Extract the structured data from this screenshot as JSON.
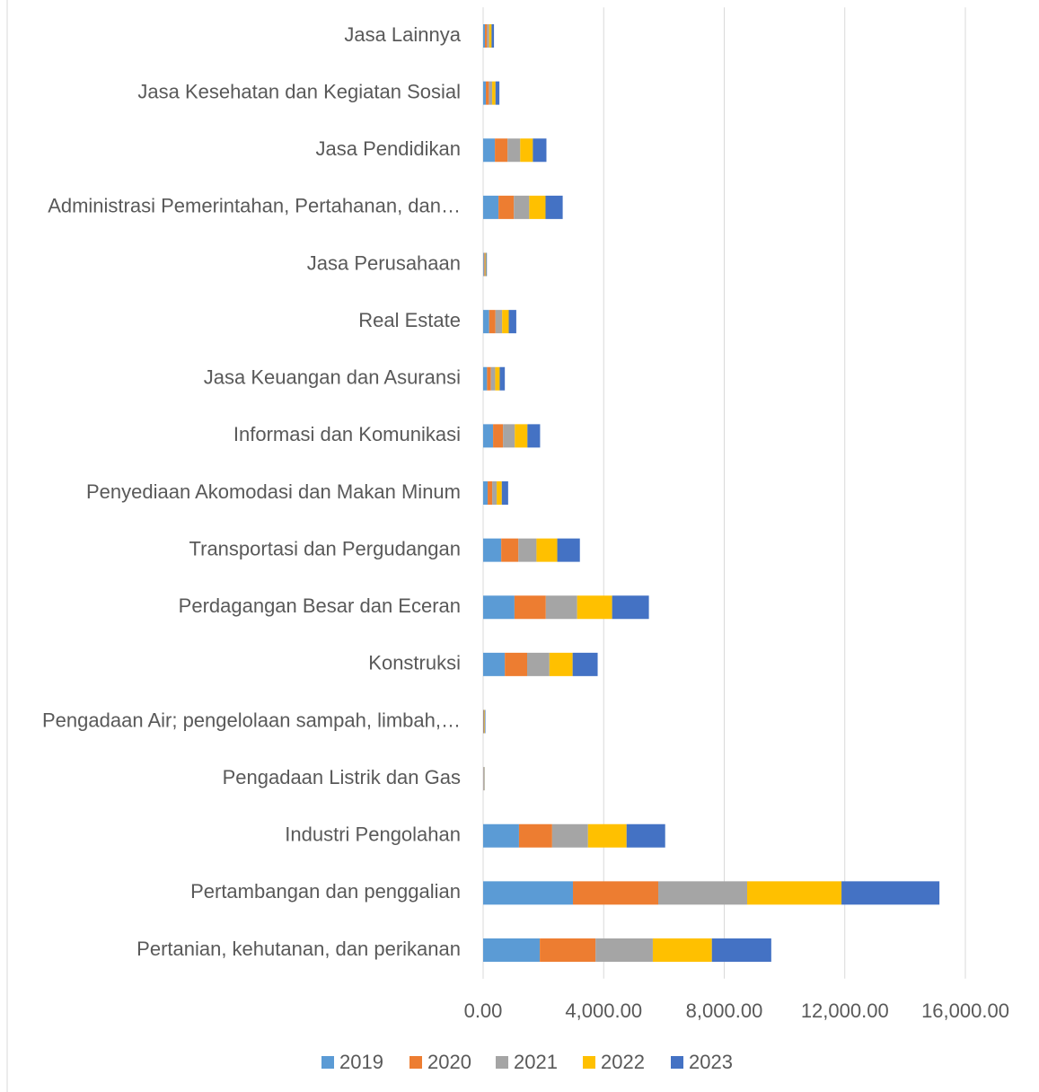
{
  "chart_data": {
    "type": "stacked_barh",
    "categories": [
      "Pertanian, kehutanan, dan perikanan",
      "Pertambangan dan penggalian",
      "Industri Pengolahan",
      "Pengadaan Listrik dan Gas",
      "Pengadaan Air; pengelolaan sampah, limbah,…",
      "Konstruksi",
      "Perdagangan Besar dan Eceran",
      "Transportasi dan Pergudangan",
      "Penyediaan Akomodasi dan Makan Minum",
      "Informasi dan Komunikasi",
      "Jasa Keuangan dan Asuransi",
      "Real Estate",
      "Jasa Perusahaan",
      "Administrasi Pemerintahan, Pertahanan, dan…",
      "Jasa Pendidikan",
      "Jasa Kesehatan dan Kegiatan Sosial",
      "Jasa Lainnya"
    ],
    "series": [
      {
        "name": "2019",
        "color": "#5b9bd5",
        "values": [
          1880,
          2980,
          1190,
          10,
          15,
          720,
          1040,
          600,
          150,
          330,
          130,
          200,
          25,
          510,
          390,
          90,
          60
        ]
      },
      {
        "name": "2020",
        "color": "#ed7d31",
        "values": [
          1850,
          2830,
          1100,
          10,
          15,
          740,
          1040,
          570,
          150,
          330,
          130,
          210,
          25,
          510,
          420,
          100,
          70
        ]
      },
      {
        "name": "2021",
        "color": "#a5a5a5",
        "values": [
          1900,
          2950,
          1190,
          10,
          15,
          740,
          1040,
          600,
          150,
          390,
          140,
          220,
          25,
          510,
          420,
          110,
          70
        ]
      },
      {
        "name": "2022",
        "color": "#ffc000",
        "values": [
          1960,
          3130,
          1280,
          10,
          15,
          770,
          1160,
          690,
          170,
          420,
          150,
          220,
          25,
          540,
          420,
          110,
          80
        ]
      },
      {
        "name": "2023",
        "color": "#4472c4",
        "values": [
          1970,
          3250,
          1280,
          10,
          15,
          830,
          1220,
          750,
          210,
          420,
          170,
          250,
          25,
          570,
          450,
          130,
          80
        ]
      }
    ],
    "xlim": [
      0,
      16000
    ],
    "xticks": [
      {
        "value": 0,
        "label": "0.00"
      },
      {
        "value": 4000,
        "label": "4,000.00"
      },
      {
        "value": 8000,
        "label": "8,000.00"
      },
      {
        "value": 12000,
        "label": "12,000.00"
      },
      {
        "value": 16000,
        "label": "16,000.00"
      }
    ],
    "grid": true,
    "legend": "bottom"
  }
}
